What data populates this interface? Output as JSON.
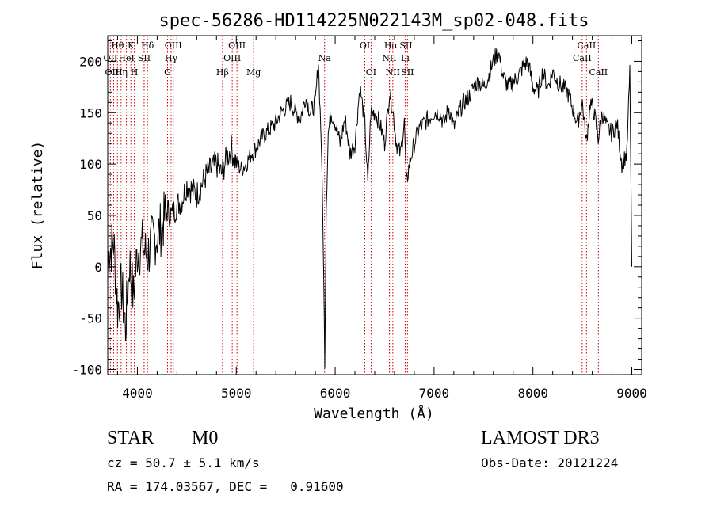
{
  "chart_data": {
    "type": "line",
    "title": "spec-56286-HD114225N022143M_sp02-048.fits",
    "xlabel": "Wavelength (Å)",
    "ylabel": "Flux (relative)",
    "xlim": [
      3700,
      9100
    ],
    "ylim": [
      -105,
      225
    ],
    "xticks": [
      4000,
      5000,
      6000,
      7000,
      8000,
      9000
    ],
    "yticks": [
      -100,
      -50,
      0,
      50,
      100,
      150,
      200
    ],
    "grid": false,
    "series": [
      {
        "name": "flux",
        "color": "#000000",
        "x": [
          3700,
          3760,
          3800,
          3840,
          3880,
          3920,
          3960,
          4000,
          4050,
          4100,
          4150,
          4200,
          4250,
          4300,
          4350,
          4400,
          4450,
          4500,
          4550,
          4600,
          4650,
          4700,
          4750,
          4800,
          4850,
          4900,
          4950,
          5000,
          5050,
          5100,
          5150,
          5200,
          5250,
          5300,
          5350,
          5400,
          5450,
          5500,
          5550,
          5600,
          5650,
          5700,
          5750,
          5800,
          5830,
          5860,
          5880,
          5895,
          5910,
          5930,
          5960,
          6000,
          6050,
          6100,
          6150,
          6200,
          6250,
          6300,
          6330,
          6360,
          6400,
          6450,
          6500,
          6550,
          6580,
          6620,
          6660,
          6700,
          6720,
          6750,
          6800,
          6850,
          6900,
          6950,
          7000,
          7050,
          7100,
          7150,
          7200,
          7250,
          7300,
          7350,
          7400,
          7450,
          7500,
          7550,
          7600,
          7650,
          7700,
          7750,
          7800,
          7850,
          7900,
          7950,
          8000,
          8050,
          8100,
          8150,
          8200,
          8250,
          8300,
          8350,
          8400,
          8450,
          8500,
          8540,
          8580,
          8620,
          8660,
          8700,
          8750,
          8800,
          8850,
          8900,
          8950,
          8980,
          9000
        ],
        "y": [
          10,
          25,
          -40,
          -20,
          -60,
          5,
          -30,
          15,
          20,
          10,
          25,
          30,
          40,
          55,
          50,
          60,
          65,
          80,
          75,
          70,
          80,
          90,
          95,
          100,
          90,
          105,
          115,
          100,
          95,
          100,
          110,
          115,
          125,
          130,
          135,
          140,
          150,
          155,
          160,
          150,
          145,
          165,
          150,
          160,
          200,
          120,
          20,
          -90,
          60,
          130,
          150,
          140,
          120,
          145,
          110,
          120,
          175,
          140,
          80,
          150,
          150,
          140,
          120,
          170,
          155,
          120,
          110,
          140,
          80,
          100,
          120,
          135,
          140,
          145,
          150,
          150,
          140,
          155,
          135,
          150,
          160,
          165,
          175,
          180,
          175,
          185,
          200,
          210,
          185,
          175,
          180,
          185,
          195,
          200,
          175,
          170,
          190,
          175,
          190,
          180,
          175,
          170,
          155,
          140,
          160,
          120,
          160,
          150,
          125,
          150,
          135,
          130,
          140,
          100,
          110,
          190,
          0
        ]
      }
    ],
    "line_markers": [
      {
        "label": "Hθ",
        "x": 3798,
        "row": 1
      },
      {
        "label": "OII",
        "x": 3727,
        "row": 2
      },
      {
        "label": "OIII",
        "x": 3760,
        "row": 3
      },
      {
        "label": "K",
        "x": 3934,
        "row": 1
      },
      {
        "label": "HeI",
        "x": 3889,
        "row": 2
      },
      {
        "label": "Hη",
        "x": 3835,
        "row": 3
      },
      {
        "label": "SII",
        "x": 4068,
        "row": 2
      },
      {
        "label": "H",
        "x": 3969,
        "row": 3
      },
      {
        "label": "Hδ",
        "x": 4102,
        "row": 1
      },
      {
        "label": "OIII",
        "x": 4363,
        "row": 1
      },
      {
        "label": "Hγ",
        "x": 4341,
        "row": 2
      },
      {
        "label": "G",
        "x": 4305,
        "row": 3
      },
      {
        "label": "Hβ",
        "x": 4861,
        "row": 3
      },
      {
        "label": "OIII",
        "x": 5007,
        "row": 1
      },
      {
        "label": "OIII",
        "x": 4959,
        "row": 2
      },
      {
        "label": "Mg",
        "x": 5175,
        "row": 3
      },
      {
        "label": "Na",
        "x": 5893,
        "row": 2
      },
      {
        "label": "OI",
        "x": 6300,
        "row": 1
      },
      {
        "label": "OI",
        "x": 6363,
        "row": 3
      },
      {
        "label": "Hα",
        "x": 6563,
        "row": 1
      },
      {
        "label": "SII",
        "x": 6716,
        "row": 1
      },
      {
        "label": "NII",
        "x": 6548,
        "row": 2
      },
      {
        "label": "Li",
        "x": 6708,
        "row": 2
      },
      {
        "label": "NII",
        "x": 6583,
        "row": 3
      },
      {
        "label": "SII",
        "x": 6731,
        "row": 3
      },
      {
        "label": "CaII",
        "x": 8542,
        "row": 1
      },
      {
        "label": "CaII",
        "x": 8498,
        "row": 2
      },
      {
        "label": "CaII",
        "x": 8662,
        "row": 3
      }
    ]
  },
  "info": {
    "object_class": "STAR",
    "subclass": "M0",
    "survey": "LAMOST DR3",
    "cz": "cz = 50.7 ± 5.1 km/s",
    "obs_date": "Obs-Date: 20121224",
    "coords": "RA = 174.03567, DEC =   0.91600"
  }
}
